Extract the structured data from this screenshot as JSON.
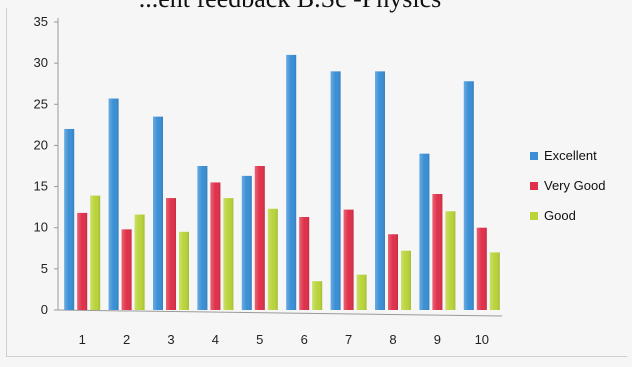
{
  "chart_data": {
    "type": "bar",
    "title": "...ent feedback B.Sc -Physics",
    "xlabel": "",
    "ylabel": "",
    "categories": [
      "1",
      "2",
      "3",
      "4",
      "5",
      "6",
      "7",
      "8",
      "9",
      "10"
    ],
    "ylim": [
      0,
      35
    ],
    "yticks": [
      0,
      5,
      10,
      15,
      20,
      25,
      30,
      35
    ],
    "grid": false,
    "legend_position": "right",
    "series": [
      {
        "name": "Excellent",
        "color": "#3a8fd6",
        "values": [
          22,
          25.7,
          23.5,
          17.5,
          16.3,
          31,
          29,
          29,
          19,
          27.8
        ]
      },
      {
        "name": "Very Good",
        "color": "#e0304a",
        "values": [
          11.8,
          9.8,
          13.6,
          15.5,
          17.5,
          11.3,
          12.2,
          9.2,
          14.1,
          10
        ]
      },
      {
        "name": "Good",
        "color": "#b9d43a",
        "values": [
          13.9,
          11.6,
          9.5,
          13.6,
          12.3,
          3.5,
          4.3,
          7.2,
          12,
          7
        ]
      }
    ]
  }
}
